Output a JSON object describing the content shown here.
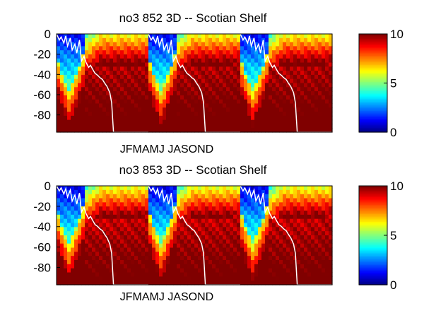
{
  "chart_data": [
    {
      "type": "heatmap",
      "title": "no3  852 3D   -- Scotian Shelf",
      "x_label_text": "JFMAMJ JASOND",
      "y_ticks": [
        0,
        -20,
        -40,
        -60,
        -80
      ],
      "ylim": [
        -97,
        0
      ],
      "colorbar": {
        "min": 0,
        "max": 10,
        "ticks": [
          0,
          5,
          10
        ],
        "colormap": "jet"
      },
      "overlay_color": "#ffffff",
      "segments": 3,
      "overlay_line": {
        "x": [
          0,
          0.03,
          0.05,
          0.08,
          0.1,
          0.12,
          0.15,
          0.17,
          0.2,
          0.22,
          0.25,
          0.27,
          0.3,
          0.32,
          0.35,
          0.37,
          0.4,
          0.42,
          0.45,
          0.47,
          0.5,
          0.52,
          0.55,
          0.58,
          0.6,
          0.62,
          0.65,
          0.67,
          0.7,
          0.72,
          0.75,
          0.77,
          0.8,
          0.82,
          0.85,
          0.87,
          0.9,
          0.92,
          0.95,
          0.97,
          1
        ],
        "y": [
          0,
          -6,
          -3,
          -9,
          -2,
          -12,
          -4,
          -16,
          -10,
          -19,
          -6,
          -27,
          -22,
          -28,
          -33,
          -31,
          -36,
          -39,
          -41,
          -43,
          -45,
          -48,
          -52,
          -58,
          -68,
          -97,
          -97,
          -97,
          -97,
          -97,
          -97,
          -97,
          -97,
          -97,
          -97,
          -97,
          -97,
          -97,
          -97,
          -97,
          -97
        ]
      }
    },
    {
      "type": "heatmap",
      "title": "no3  853 3D   -- Scotian Shelf",
      "x_label_text": "JFMAMJ JASOND",
      "y_ticks": [
        0,
        -20,
        -40,
        -60,
        -80
      ],
      "ylim": [
        -97,
        0
      ],
      "colorbar": {
        "min": 0,
        "max": 10,
        "ticks": [
          0,
          5,
          10
        ],
        "colormap": "jet"
      },
      "overlay_color": "#ffffff",
      "segments": 3,
      "overlay_line": {
        "x": [
          0,
          0.03,
          0.05,
          0.08,
          0.1,
          0.12,
          0.15,
          0.17,
          0.2,
          0.22,
          0.25,
          0.27,
          0.3,
          0.32,
          0.35,
          0.37,
          0.4,
          0.42,
          0.45,
          0.47,
          0.5,
          0.52,
          0.55,
          0.58,
          0.6,
          0.62,
          0.65,
          0.67,
          0.7,
          0.72,
          0.75,
          0.77,
          0.8,
          0.82,
          0.85,
          0.87,
          0.9,
          0.92,
          0.95,
          0.97,
          1
        ],
        "y": [
          0,
          -5,
          -2,
          -8,
          -3,
          -11,
          -4,
          -15,
          -9,
          -18,
          -7,
          -26,
          -21,
          -27,
          -32,
          -30,
          -35,
          -38,
          -40,
          -42,
          -44,
          -47,
          -51,
          -57,
          -66,
          -97,
          -97,
          -97,
          -97,
          -97,
          -97,
          -97,
          -97,
          -97,
          -97,
          -97,
          -97,
          -97,
          -97,
          -97,
          -97
        ]
      }
    }
  ]
}
